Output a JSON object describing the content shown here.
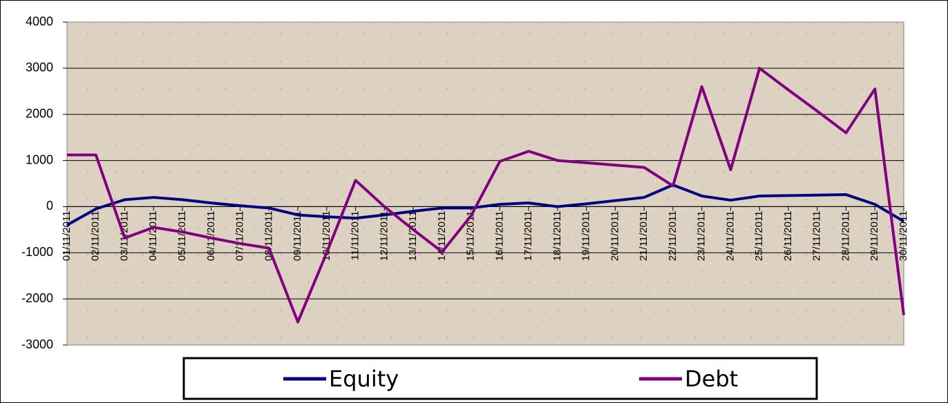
{
  "chart_data": {
    "type": "line",
    "categories": [
      "01/11/2011",
      "02/11/2011",
      "03/11/2011",
      "04/11/2011",
      "05/11/2011",
      "06/11/2011",
      "07/11/2011",
      "08/11/2011",
      "09/11/2011",
      "10/11/2011",
      "11/11/2011",
      "12/11/2011",
      "13/11/2011",
      "14/11/2011",
      "15/11/2011",
      "16/11/2011",
      "17/11/2011",
      "18/11/2011",
      "19/11/2011",
      "20/11/2011",
      "21/11/2011",
      "22/11/2011",
      "23/11/2011",
      "24/11/2011",
      "25/11/2011",
      "26/11/2011",
      "27/11/2011",
      "28/11/2011",
      "29/11/2011",
      "30/11/2011"
    ],
    "series": [
      {
        "name": "Equity",
        "color": "#000080",
        "values": [
          -400,
          -50,
          150,
          200,
          150,
          80,
          20,
          -30,
          -180,
          -220,
          -250,
          -180,
          -100,
          -30,
          -30,
          50,
          80,
          0,
          60,
          130,
          200,
          470,
          230,
          140,
          230,
          240,
          250,
          260,
          50,
          -320
        ]
      },
      {
        "name": "Debt",
        "color": "#800080",
        "values": [
          1120,
          1120,
          -680,
          -450,
          -550,
          -680,
          -800,
          -900,
          -2500,
          -1000,
          570,
          0,
          -500,
          -980,
          -200,
          980,
          1200,
          1000,
          950,
          900,
          850,
          450,
          2600,
          800,
          3000,
          2530,
          2070,
          1600,
          2550,
          -2350
        ]
      }
    ],
    "ylim": [
      -3000,
      4000
    ],
    "yticks": [
      -3000,
      -2000,
      -1000,
      0,
      1000,
      2000,
      3000,
      4000
    ],
    "grid": true,
    "legend": "bottom"
  }
}
